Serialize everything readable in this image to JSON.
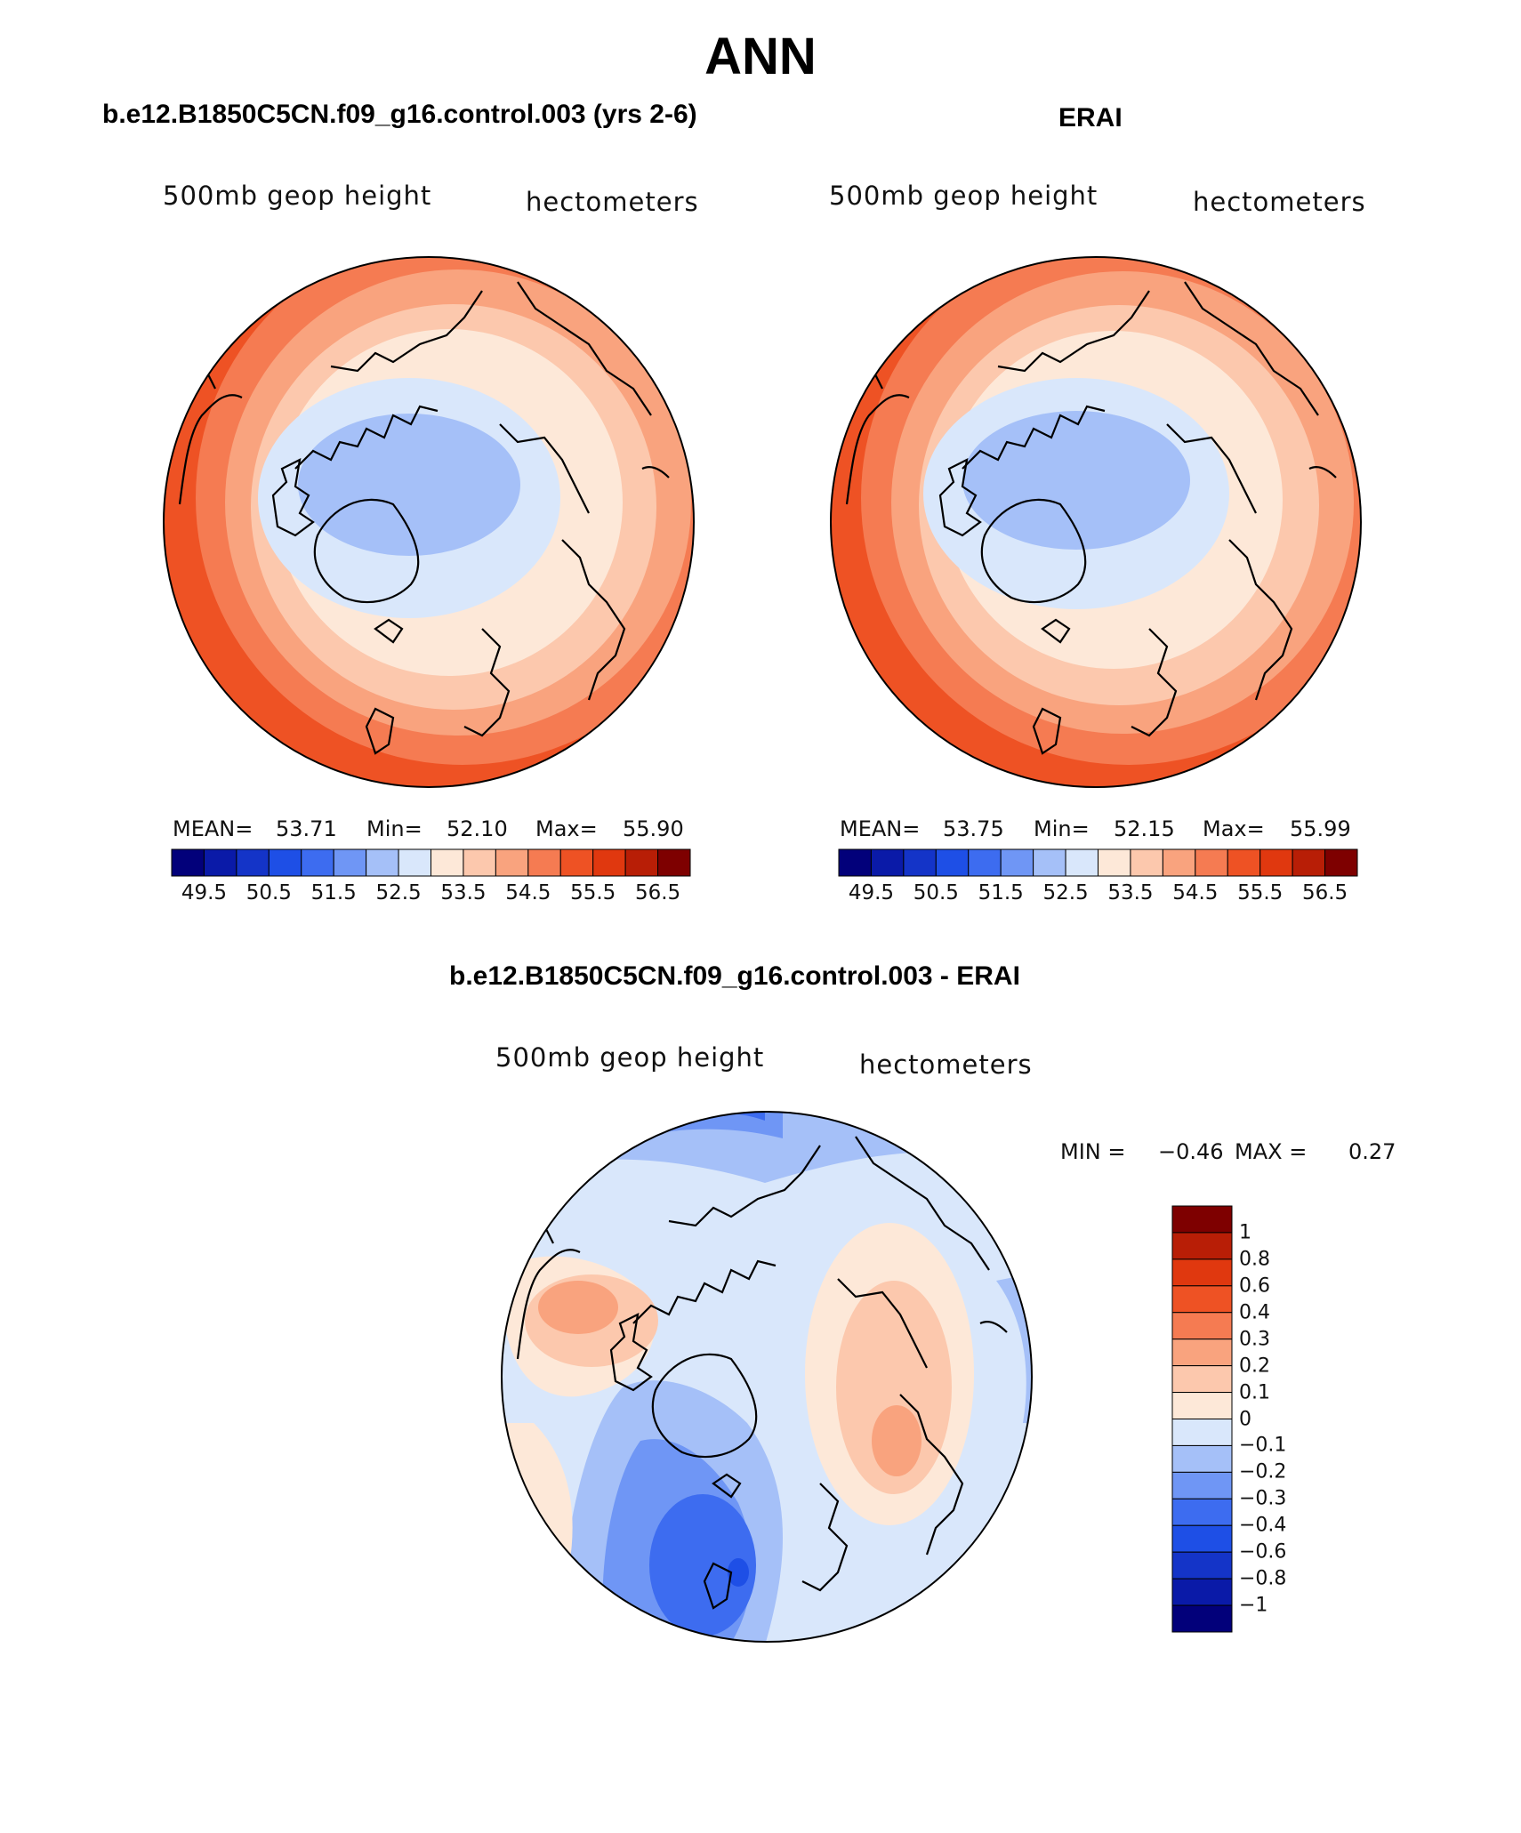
{
  "main_title": "ANN",
  "panels": {
    "model": {
      "title": "b.e12.B1850C5CN.f09_g16.control.003 (yrs 2-6)",
      "variable": "500mb geop height",
      "units": "hectometers",
      "stats": {
        "mean_label": "MEAN=",
        "mean": "53.71",
        "min_label": "Min=",
        "min": "52.10",
        "max_label": "Max=",
        "max": "55.90"
      }
    },
    "obs": {
      "title": "ERAI",
      "variable": "500mb geop height",
      "units": "hectometers",
      "stats": {
        "mean_label": "MEAN=",
        "mean": "53.75",
        "min_label": "Min=",
        "min": "52.15",
        "max_label": "Max=",
        "max": "55.99"
      }
    },
    "diff": {
      "title": "b.e12.B1850C5CN.f09_g16.control.003 - ERAI",
      "variable": "500mb geop height",
      "units": "hectometers",
      "stats": {
        "min_label": "MIN =",
        "min": "−0.46",
        "max_label": "MAX =",
        "max": "0.27"
      }
    }
  },
  "colorbar_abs": {
    "colors": [
      "#02007a",
      "#0a1aa8",
      "#1434c8",
      "#1e4fe6",
      "#3d6cf0",
      "#6f96f5",
      "#a5c0f8",
      "#d9e7fb",
      "#fde8d8",
      "#fcc8ad",
      "#f9a37e",
      "#f57b52",
      "#ee5224",
      "#e0380f",
      "#b81e06",
      "#7e0000"
    ],
    "ticks": [
      "49.5",
      "50.5",
      "51.5",
      "52.5",
      "53.5",
      "54.5",
      "55.5",
      "56.5"
    ]
  },
  "colorbar_diff": {
    "colors": [
      "#7e0000",
      "#b81e06",
      "#e0380f",
      "#ee5224",
      "#f57b52",
      "#f9a37e",
      "#fcc8ad",
      "#fde8d8",
      "#d9e7fb",
      "#a5c0f8",
      "#6f96f5",
      "#3d6cf0",
      "#1e4fe6",
      "#1434c8",
      "#0a1aa8",
      "#02007a"
    ],
    "ticks": [
      "1",
      "0.8",
      "0.6",
      "0.4",
      "0.3",
      "0.2",
      "0.1",
      "0",
      "−0.1",
      "−0.2",
      "−0.3",
      "−0.4",
      "−0.6",
      "−0.8",
      "−1"
    ]
  }
}
